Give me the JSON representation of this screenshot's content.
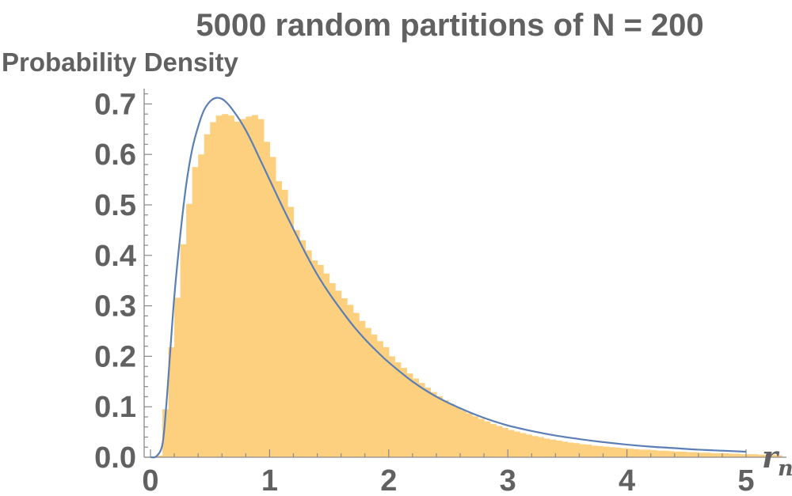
{
  "chart_data": {
    "type": "histogram",
    "title": "5000 random partitions of N = 200",
    "ylabel": "Probability Density",
    "xlabel": "r",
    "xlabel_subscript": "n",
    "xlim": [
      0,
      5.3
    ],
    "ylim": [
      0,
      0.75
    ],
    "x_ticks": [
      0,
      1,
      2,
      3,
      4,
      5
    ],
    "x_tick_labels": [
      "0",
      "1",
      "2",
      "3",
      "4",
      "5"
    ],
    "y_ticks": [
      0.0,
      0.1,
      0.2,
      0.3,
      0.4,
      0.5,
      0.6,
      0.7
    ],
    "y_tick_labels": [
      "0.0",
      "0.1",
      "0.2",
      "0.3",
      "0.4",
      "0.5",
      "0.6",
      "0.7"
    ],
    "bin_width": 0.05,
    "bins": [
      [
        0.05,
        0.003
      ],
      [
        0.1,
        0.095
      ],
      [
        0.15,
        0.218
      ],
      [
        0.2,
        0.316
      ],
      [
        0.25,
        0.422
      ],
      [
        0.3,
        0.502
      ],
      [
        0.35,
        0.575
      ],
      [
        0.4,
        0.6
      ],
      [
        0.45,
        0.64
      ],
      [
        0.5,
        0.664
      ],
      [
        0.55,
        0.677
      ],
      [
        0.6,
        0.68
      ],
      [
        0.65,
        0.677
      ],
      [
        0.7,
        0.665
      ],
      [
        0.75,
        0.67
      ],
      [
        0.8,
        0.675
      ],
      [
        0.85,
        0.678
      ],
      [
        0.9,
        0.67
      ],
      [
        0.95,
        0.625
      ],
      [
        1.0,
        0.595
      ],
      [
        1.05,
        0.547
      ],
      [
        1.1,
        0.53
      ],
      [
        1.15,
        0.496
      ],
      [
        1.2,
        0.45
      ],
      [
        1.25,
        0.43
      ],
      [
        1.3,
        0.41
      ],
      [
        1.35,
        0.39
      ],
      [
        1.4,
        0.381
      ],
      [
        1.45,
        0.364
      ],
      [
        1.5,
        0.345
      ],
      [
        1.55,
        0.33
      ],
      [
        1.6,
        0.315
      ],
      [
        1.65,
        0.302
      ],
      [
        1.7,
        0.286
      ],
      [
        1.75,
        0.27
      ],
      [
        1.8,
        0.256
      ],
      [
        1.85,
        0.243
      ],
      [
        1.9,
        0.23
      ],
      [
        1.95,
        0.218
      ],
      [
        2.0,
        0.2
      ],
      [
        2.05,
        0.188
      ],
      [
        2.1,
        0.177
      ],
      [
        2.15,
        0.166
      ],
      [
        2.2,
        0.156
      ],
      [
        2.25,
        0.147
      ],
      [
        2.3,
        0.138
      ],
      [
        2.35,
        0.129
      ],
      [
        2.4,
        0.121
      ],
      [
        2.45,
        0.113
      ],
      [
        2.5,
        0.106
      ],
      [
        2.55,
        0.099
      ],
      [
        2.6,
        0.093
      ],
      [
        2.65,
        0.087
      ],
      [
        2.7,
        0.081
      ],
      [
        2.75,
        0.076
      ],
      [
        2.8,
        0.071
      ],
      [
        2.85,
        0.066
      ],
      [
        2.9,
        0.062
      ],
      [
        2.95,
        0.058
      ],
      [
        3.0,
        0.054
      ],
      [
        3.05,
        0.051
      ],
      [
        3.1,
        0.048
      ],
      [
        3.15,
        0.045
      ],
      [
        3.2,
        0.042
      ],
      [
        3.25,
        0.04
      ],
      [
        3.3,
        0.037
      ],
      [
        3.35,
        0.035
      ],
      [
        3.4,
        0.033
      ],
      [
        3.45,
        0.031
      ],
      [
        3.5,
        0.029
      ],
      [
        3.55,
        0.028
      ],
      [
        3.6,
        0.026
      ],
      [
        3.65,
        0.025
      ],
      [
        3.7,
        0.023
      ],
      [
        3.75,
        0.022
      ],
      [
        3.8,
        0.021
      ],
      [
        3.85,
        0.02
      ],
      [
        3.9,
        0.019
      ],
      [
        3.95,
        0.018
      ],
      [
        4.0,
        0.017
      ],
      [
        4.05,
        0.016
      ],
      [
        4.1,
        0.015
      ],
      [
        4.15,
        0.015
      ],
      [
        4.2,
        0.014
      ],
      [
        4.25,
        0.013
      ],
      [
        4.3,
        0.013
      ],
      [
        4.35,
        0.012
      ],
      [
        4.4,
        0.011
      ],
      [
        4.45,
        0.011
      ],
      [
        4.5,
        0.01
      ],
      [
        4.55,
        0.01
      ],
      [
        4.6,
        0.009
      ],
      [
        4.65,
        0.009
      ],
      [
        4.7,
        0.008
      ],
      [
        4.75,
        0.008
      ],
      [
        4.8,
        0.008
      ],
      [
        4.85,
        0.007
      ],
      [
        4.9,
        0.007
      ],
      [
        4.95,
        0.006
      ],
      [
        5.0,
        0.006
      ],
      [
        5.05,
        0.006
      ],
      [
        5.1,
        0.005
      ],
      [
        5.15,
        0.005
      ],
      [
        5.2,
        0.005
      ],
      [
        5.25,
        0.004
      ]
    ],
    "curve": {
      "x": [
        0.0,
        0.05,
        0.1,
        0.13,
        0.16,
        0.2,
        0.25,
        0.3,
        0.35,
        0.4,
        0.45,
        0.5,
        0.55,
        0.6,
        0.65,
        0.7,
        0.75,
        0.8,
        0.85,
        0.9,
        0.95,
        1.0,
        1.1,
        1.2,
        1.3,
        1.4,
        1.5,
        1.6,
        1.7,
        1.8,
        1.9,
        2.0,
        2.2,
        2.4,
        2.6,
        2.8,
        3.0,
        3.2,
        3.4,
        3.6,
        3.8,
        4.0,
        4.2,
        4.4,
        4.6,
        4.8,
        5.0
      ],
      "y": [
        0.0,
        0.002,
        0.025,
        0.095,
        0.19,
        0.318,
        0.44,
        0.54,
        0.61,
        0.655,
        0.688,
        0.705,
        0.712,
        0.71,
        0.7,
        0.685,
        0.668,
        0.648,
        0.625,
        0.6,
        0.575,
        0.55,
        0.5,
        0.452,
        0.405,
        0.362,
        0.325,
        0.292,
        0.261,
        0.234,
        0.21,
        0.188,
        0.15,
        0.12,
        0.097,
        0.078,
        0.063,
        0.052,
        0.043,
        0.036,
        0.03,
        0.025,
        0.021,
        0.018,
        0.015,
        0.013,
        0.011
      ]
    },
    "colors": {
      "bars": "#fdd080",
      "curve": "#5b7fb5",
      "text": "#616161",
      "axis": "#8a8a8a"
    }
  }
}
